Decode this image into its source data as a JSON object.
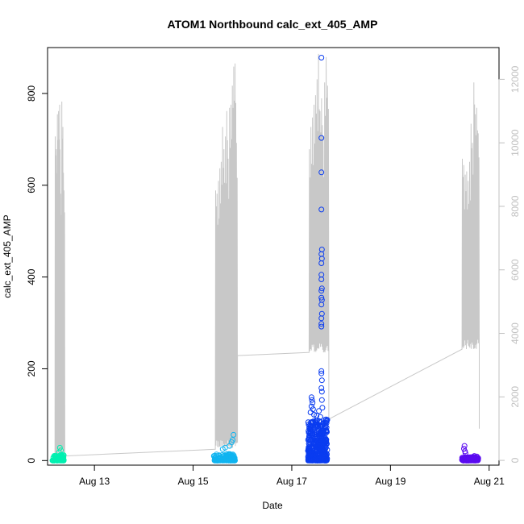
{
  "chart_data": {
    "type": "scatter",
    "title": "ATOM1 Northbound calc_ext_405_AMP",
    "xlabel": "Date",
    "ylabel": "calc_ext_405_AMP",
    "x_ticks": [
      "Aug 13",
      "Aug 15",
      "Aug 17",
      "Aug 19",
      "Aug 21"
    ],
    "x_tick_values": [
      13,
      15,
      17,
      19,
      21
    ],
    "xlim": [
      12.05,
      21.2
    ],
    "y_ticks": [
      0,
      200,
      400,
      600,
      800
    ],
    "ylim": [
      -10,
      900
    ],
    "y2_ticks": [
      0,
      2000,
      4000,
      6000,
      8000,
      10000,
      12000
    ],
    "y2lim": [
      -150,
      13000
    ],
    "colors": {
      "profile_line": "#c8c8c8",
      "right_axis": "#c0c0c0",
      "series_1": "#00f0b0",
      "series_2": "#10b4f0",
      "series_3": "#0a3cf0",
      "series_4": "#5a0af0"
    },
    "profile_line_y2": {
      "bursts": [
        {
          "start": 12.2,
          "end": 12.4,
          "base": 100,
          "peaks": [
            10200,
            9800,
            10900,
            11000,
            11200,
            8400,
            11300,
            10500,
            8500
          ],
          "end_base": 140
        },
        {
          "start": 15.45,
          "end": 15.9,
          "base": 350,
          "peaks": [
            8500,
            8400,
            8800,
            9200,
            9400,
            10500,
            9800,
            10200,
            11000,
            9500,
            11100,
            11200,
            11800,
            12400,
            12500,
            10000
          ],
          "end_base": 3300
        },
        {
          "start": 17.35,
          "end": 17.75,
          "base": 3400,
          "peaks": [
            9800,
            10500,
            10800,
            11200,
            11500,
            12000,
            12800,
            11000,
            11400,
            10200,
            11900,
            12700,
            11800
          ],
          "end_base": 1300
        },
        {
          "start": 20.45,
          "end": 20.8,
          "base": 3500,
          "peaks": [
            9500,
            9300,
            9000,
            9100,
            8800,
            9400,
            10600,
            10000,
            11900,
            10900,
            11100,
            10300
          ],
          "end_base": 1000
        }
      ]
    },
    "series": [
      {
        "color_key": "series_1",
        "x_range": [
          12.15,
          12.38
        ],
        "n": 90,
        "typical_max": 12,
        "extra_points": [
          {
            "x": 12.3,
            "y": 28
          },
          {
            "x": 12.32,
            "y": 22
          },
          {
            "x": 12.28,
            "y": 18
          }
        ]
      },
      {
        "color_key": "series_2",
        "x_range": [
          15.42,
          15.85
        ],
        "n": 160,
        "typical_max": 15,
        "extra_points": [
          {
            "x": 15.82,
            "y": 56
          },
          {
            "x": 15.8,
            "y": 45
          },
          {
            "x": 15.78,
            "y": 40
          },
          {
            "x": 15.65,
            "y": 28
          },
          {
            "x": 15.6,
            "y": 25
          },
          {
            "x": 15.74,
            "y": 32
          }
        ]
      },
      {
        "color_key": "series_3",
        "x_range": [
          17.33,
          17.72
        ],
        "n": 420,
        "typical_max": 90,
        "extra_points": [
          {
            "x": 17.6,
            "y": 878
          },
          {
            "x": 17.6,
            "y": 703
          },
          {
            "x": 17.6,
            "y": 628
          },
          {
            "x": 17.6,
            "y": 547
          },
          {
            "x": 17.61,
            "y": 460
          },
          {
            "x": 17.6,
            "y": 450
          },
          {
            "x": 17.61,
            "y": 440
          },
          {
            "x": 17.6,
            "y": 430
          },
          {
            "x": 17.6,
            "y": 405
          },
          {
            "x": 17.6,
            "y": 395
          },
          {
            "x": 17.61,
            "y": 375
          },
          {
            "x": 17.6,
            "y": 370
          },
          {
            "x": 17.6,
            "y": 355
          },
          {
            "x": 17.61,
            "y": 350
          },
          {
            "x": 17.6,
            "y": 340
          },
          {
            "x": 17.61,
            "y": 320
          },
          {
            "x": 17.6,
            "y": 310
          },
          {
            "x": 17.6,
            "y": 298
          },
          {
            "x": 17.6,
            "y": 292
          },
          {
            "x": 17.6,
            "y": 195
          },
          {
            "x": 17.6,
            "y": 190
          },
          {
            "x": 17.61,
            "y": 175
          },
          {
            "x": 17.6,
            "y": 158
          },
          {
            "x": 17.61,
            "y": 150
          },
          {
            "x": 17.61,
            "y": 132
          },
          {
            "x": 17.62,
            "y": 115
          },
          {
            "x": 17.4,
            "y": 138
          },
          {
            "x": 17.41,
            "y": 132
          },
          {
            "x": 17.42,
            "y": 126
          },
          {
            "x": 17.4,
            "y": 118
          },
          {
            "x": 17.43,
            "y": 112
          },
          {
            "x": 17.38,
            "y": 105
          },
          {
            "x": 17.45,
            "y": 100
          },
          {
            "x": 17.5,
            "y": 98
          },
          {
            "x": 17.55,
            "y": 108
          },
          {
            "x": 17.58,
            "y": 95
          },
          {
            "x": 17.36,
            "y": 30
          },
          {
            "x": 17.37,
            "y": 14
          },
          {
            "x": 17.65,
            "y": 62
          },
          {
            "x": 17.7,
            "y": 45
          }
        ]
      },
      {
        "color_key": "series_4",
        "x_range": [
          20.45,
          20.78
        ],
        "n": 140,
        "typical_max": 8,
        "extra_points": [
          {
            "x": 20.5,
            "y": 32
          },
          {
            "x": 20.49,
            "y": 26
          },
          {
            "x": 20.51,
            "y": 20
          },
          {
            "x": 20.52,
            "y": 16
          },
          {
            "x": 20.7,
            "y": 10
          },
          {
            "x": 20.75,
            "y": 9
          }
        ]
      }
    ],
    "grid": false,
    "legend": "none"
  }
}
